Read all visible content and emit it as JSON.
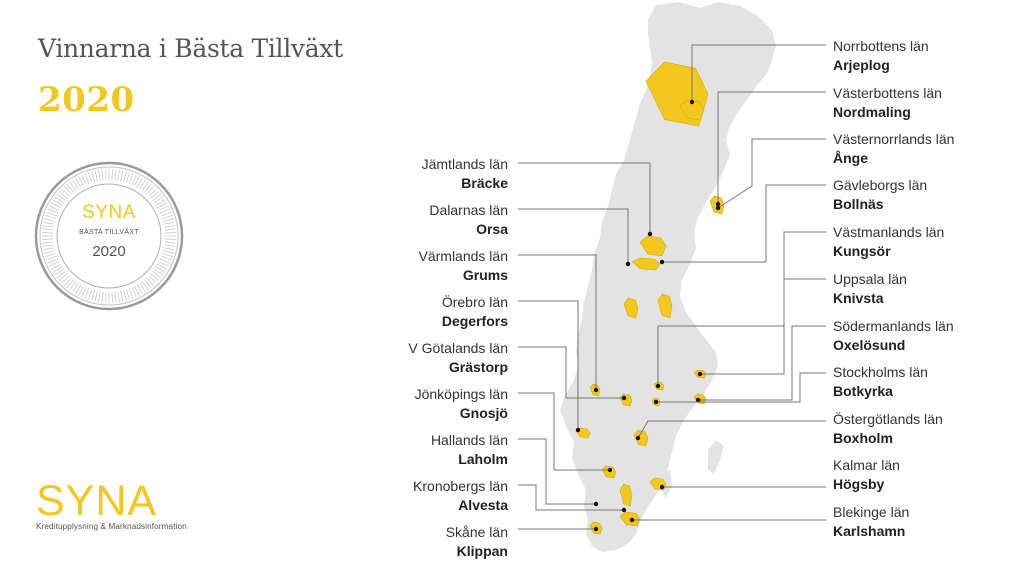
{
  "header": {
    "title": "Vinnarna i Bästa Tillväxt",
    "year": "2020"
  },
  "badge": {
    "brand": "SYNA",
    "subtitle": "BÄSTA TILLVÄXT",
    "year": "2020"
  },
  "logo": {
    "word": "SYNA",
    "tagline": "Kreditupplysning & Marknadsinformation"
  },
  "colors": {
    "accent": "#f2c81f",
    "map_fill": "#e3e3e3",
    "leader_line": "#777777",
    "title_text": "#555555"
  },
  "map": {
    "country": "Sweden",
    "left_labels": [
      {
        "county": "Jämtlands län",
        "winner": "Bräcke"
      },
      {
        "county": "Dalarnas län",
        "winner": "Orsa"
      },
      {
        "county": "Värmlands län",
        "winner": "Grums"
      },
      {
        "county": "Örebro län",
        "winner": "Degerfors"
      },
      {
        "county": "V Götalands län",
        "winner": "Grästorp"
      },
      {
        "county": "Jönköpings län",
        "winner": "Gnosjö"
      },
      {
        "county": "Hallands län",
        "winner": "Laholm"
      },
      {
        "county": "Kronobergs län",
        "winner": "Alvesta"
      },
      {
        "county": "Skåne län",
        "winner": "Klippan"
      }
    ],
    "right_labels": [
      {
        "county": "Norrbottens län",
        "winner": "Arjeplog"
      },
      {
        "county": "Västerbottens län",
        "winner": "Nordmaling"
      },
      {
        "county": "Västernorrlands län",
        "winner": "Ånge"
      },
      {
        "county": "Gävleborgs län",
        "winner": "Bollnäs"
      },
      {
        "county": "Västmanlands län",
        "winner": "Kungsör"
      },
      {
        "county": "Uppsala län",
        "winner": "Knivsta"
      },
      {
        "county": "Södermanlands län",
        "winner": "Oxelösund"
      },
      {
        "county": "Stockholms län",
        "winner": "Botkyrka"
      },
      {
        "county": "Östergötlands län",
        "winner": "Boxholm"
      },
      {
        "county": "Kalmar län",
        "winner": "Högsby"
      },
      {
        "county": "Blekinge län",
        "winner": "Karlshamn"
      }
    ]
  }
}
